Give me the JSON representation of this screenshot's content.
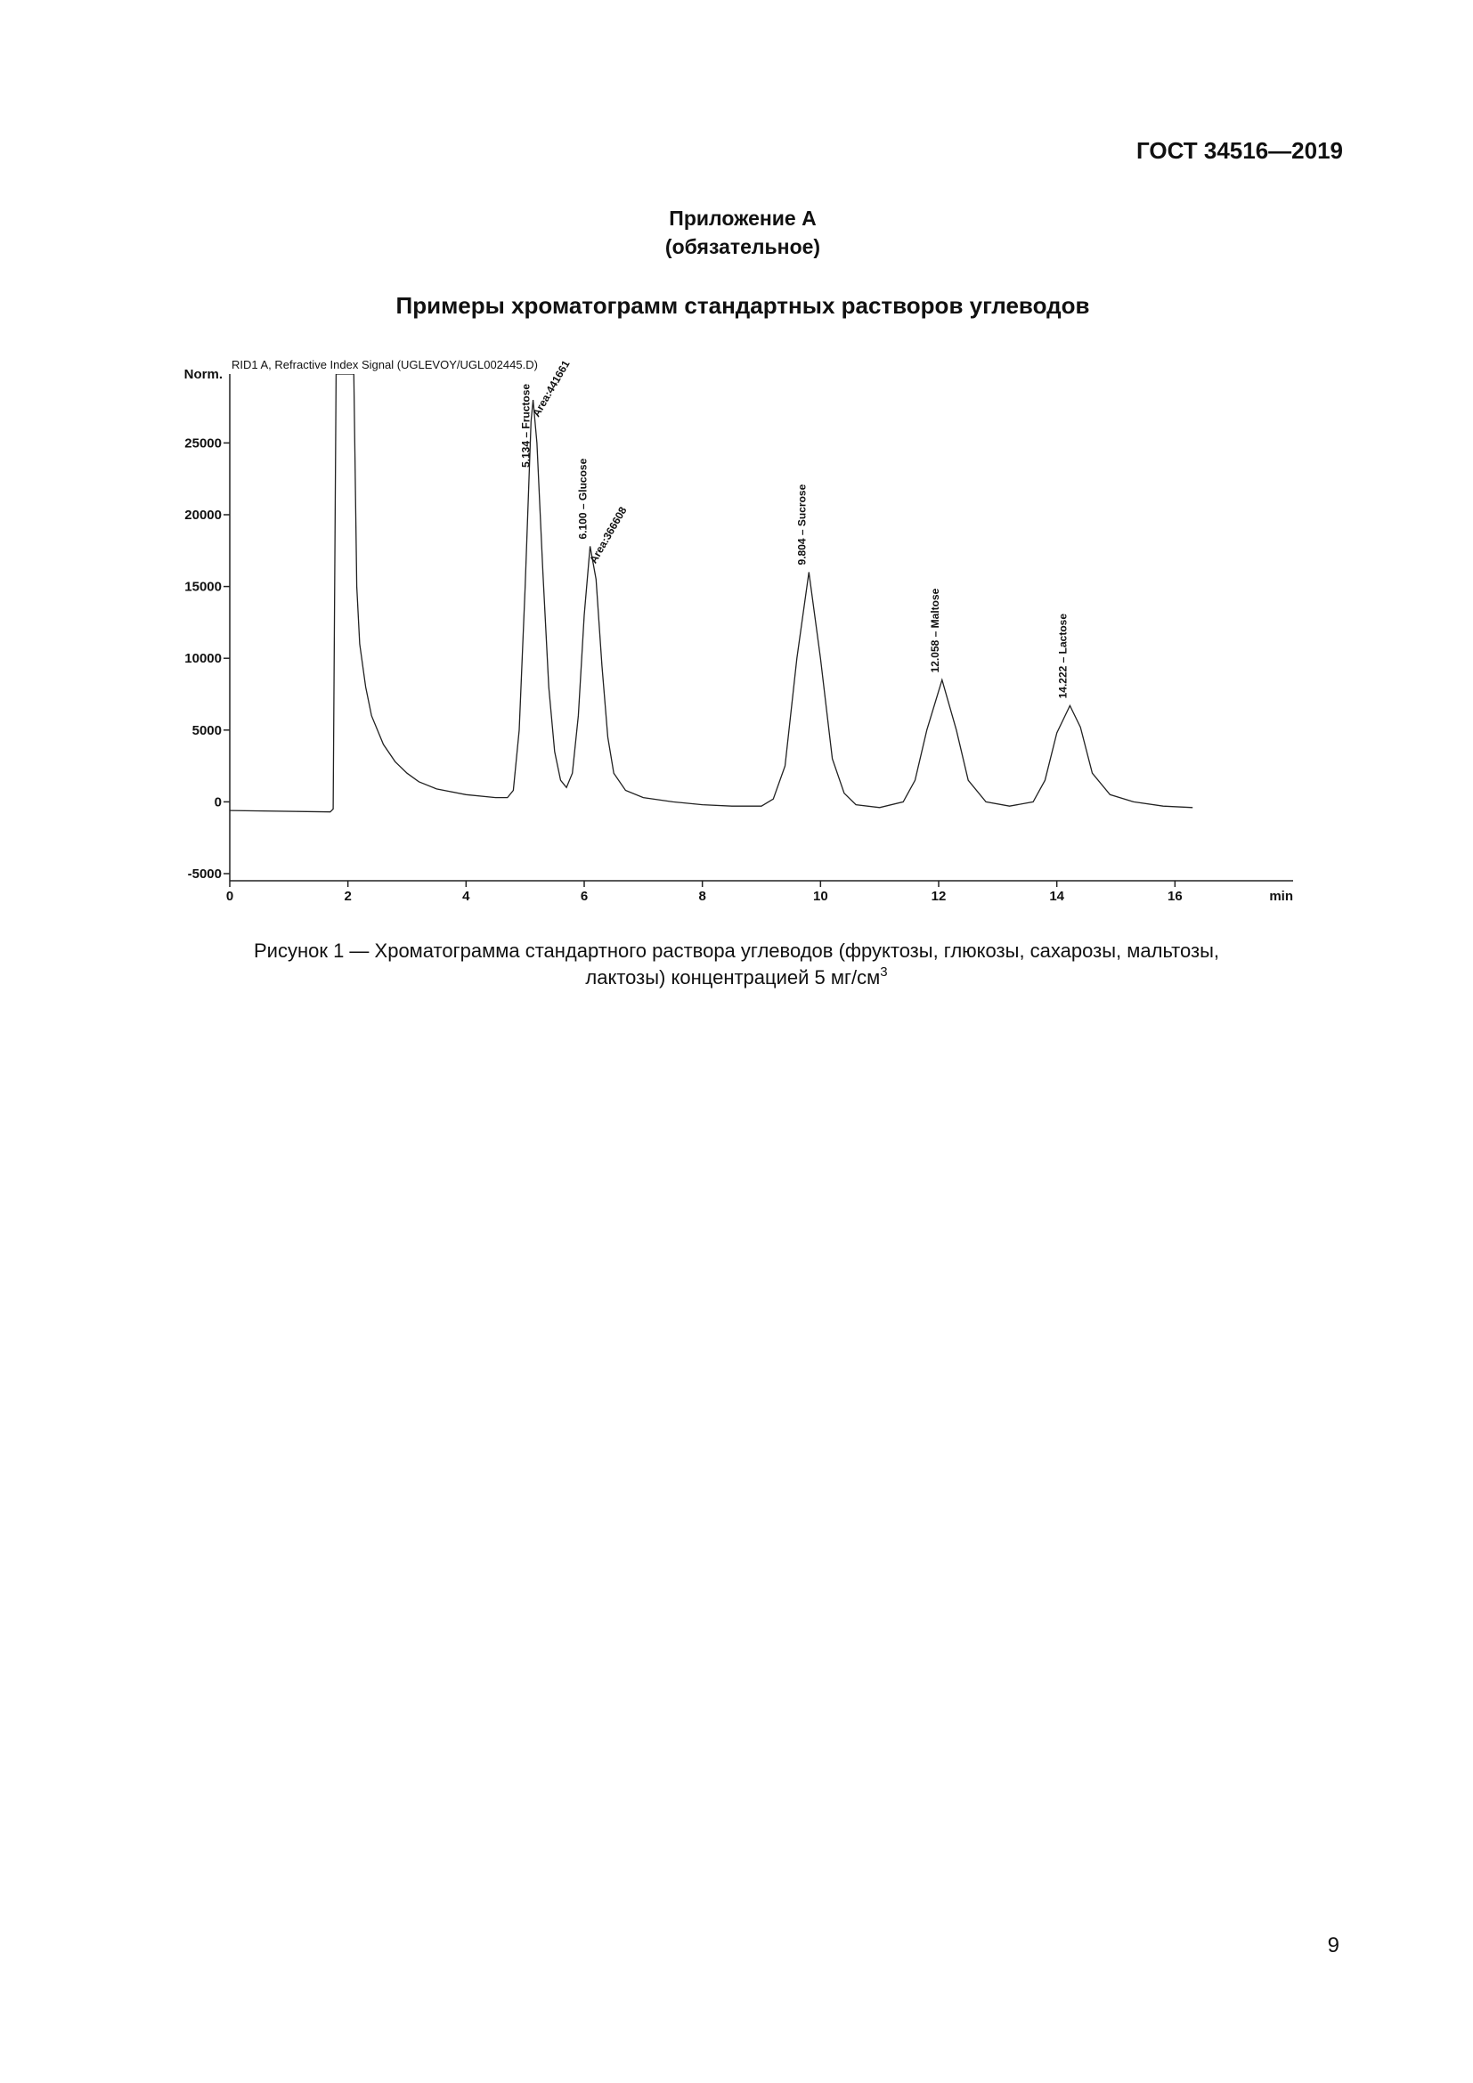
{
  "header": {
    "standard": "ГОСТ 34516—2019",
    "appendix": "Приложение А",
    "appendix_status": "(обязательное)",
    "title": "Примеры хроматограмм стандартных растворов углеводов"
  },
  "chart_data": {
    "type": "line",
    "title": "RID1 A, Refractive Index Signal (UGLEVOY/UGL002445.D)",
    "ylabel": "Norm.",
    "xlabel": "min",
    "x": [
      0,
      1.7,
      1.75,
      1.8,
      2.1,
      2.15,
      2.2,
      2.3,
      2.4,
      2.6,
      2.8,
      3.0,
      3.2,
      3.5,
      4.0,
      4.5,
      4.7,
      4.8,
      4.9,
      5.0,
      5.1,
      5.134,
      5.2,
      5.3,
      5.4,
      5.5,
      5.6,
      5.7,
      5.8,
      5.9,
      6.0,
      6.1,
      6.2,
      6.3,
      6.4,
      6.5,
      6.7,
      7.0,
      7.5,
      8.0,
      8.5,
      9.0,
      9.2,
      9.4,
      9.6,
      9.804,
      10.0,
      10.2,
      10.4,
      10.6,
      11.0,
      11.4,
      11.6,
      11.8,
      12.058,
      12.3,
      12.5,
      12.8,
      13.2,
      13.6,
      13.8,
      14.0,
      14.222,
      14.4,
      14.6,
      14.9,
      15.3,
      15.8,
      16.3
    ],
    "series": [
      {
        "name": "RID1 A",
        "color": "#222222",
        "values": [
          -600,
          -700,
          -500,
          29800,
          29800,
          15000,
          11000,
          8000,
          6000,
          4000,
          2800,
          2000,
          1400,
          900,
          500,
          300,
          300,
          800,
          5000,
          15000,
          26500,
          28000,
          25000,
          16000,
          8000,
          3500,
          1500,
          1000,
          2000,
          6000,
          13000,
          17800,
          15500,
          9500,
          4500,
          2000,
          800,
          300,
          0,
          -200,
          -300,
          -300,
          200,
          2500,
          10000,
          16000,
          10000,
          3000,
          600,
          -200,
          -400,
          0,
          1500,
          5000,
          8500,
          5000,
          1500,
          0,
          -300,
          0,
          1500,
          4800,
          6700,
          5200,
          2000,
          500,
          0,
          -300,
          -400
        ]
      }
    ],
    "peaks": [
      {
        "value": 5.134,
        "label": "5.134 – Fructose",
        "area": {
          "value": 441661,
          "label": "Area:441661"
        }
      },
      {
        "value": 6.1,
        "label": "6.100 – Glucose",
        "area": {
          "value": 366608,
          "label": "Area:366608"
        }
      },
      {
        "value": 9.804,
        "label": "9.804 – Sucrose"
      },
      {
        "value": 12.058,
        "label": "12.058 – Maltose"
      },
      {
        "value": 14.222,
        "label": "14.222 – Lactose"
      }
    ],
    "xlim": [
      0,
      18
    ],
    "ylim": [
      -5000,
      29800
    ],
    "xticks": [
      0,
      2,
      4,
      6,
      8,
      10,
      12,
      14,
      16
    ],
    "yticks": [
      -5000,
      0,
      5000,
      10000,
      15000,
      20000,
      25000
    ]
  },
  "caption": {
    "lines": [
      "Рисунок 1 — Хроматограмма стандартного раствора углеводов (фруктозы, глюкозы, сахарозы, мальтозы,",
      "лактозы) концентрацией 5 мг/см"
    ],
    "superscript": "3"
  },
  "page_number": "9"
}
